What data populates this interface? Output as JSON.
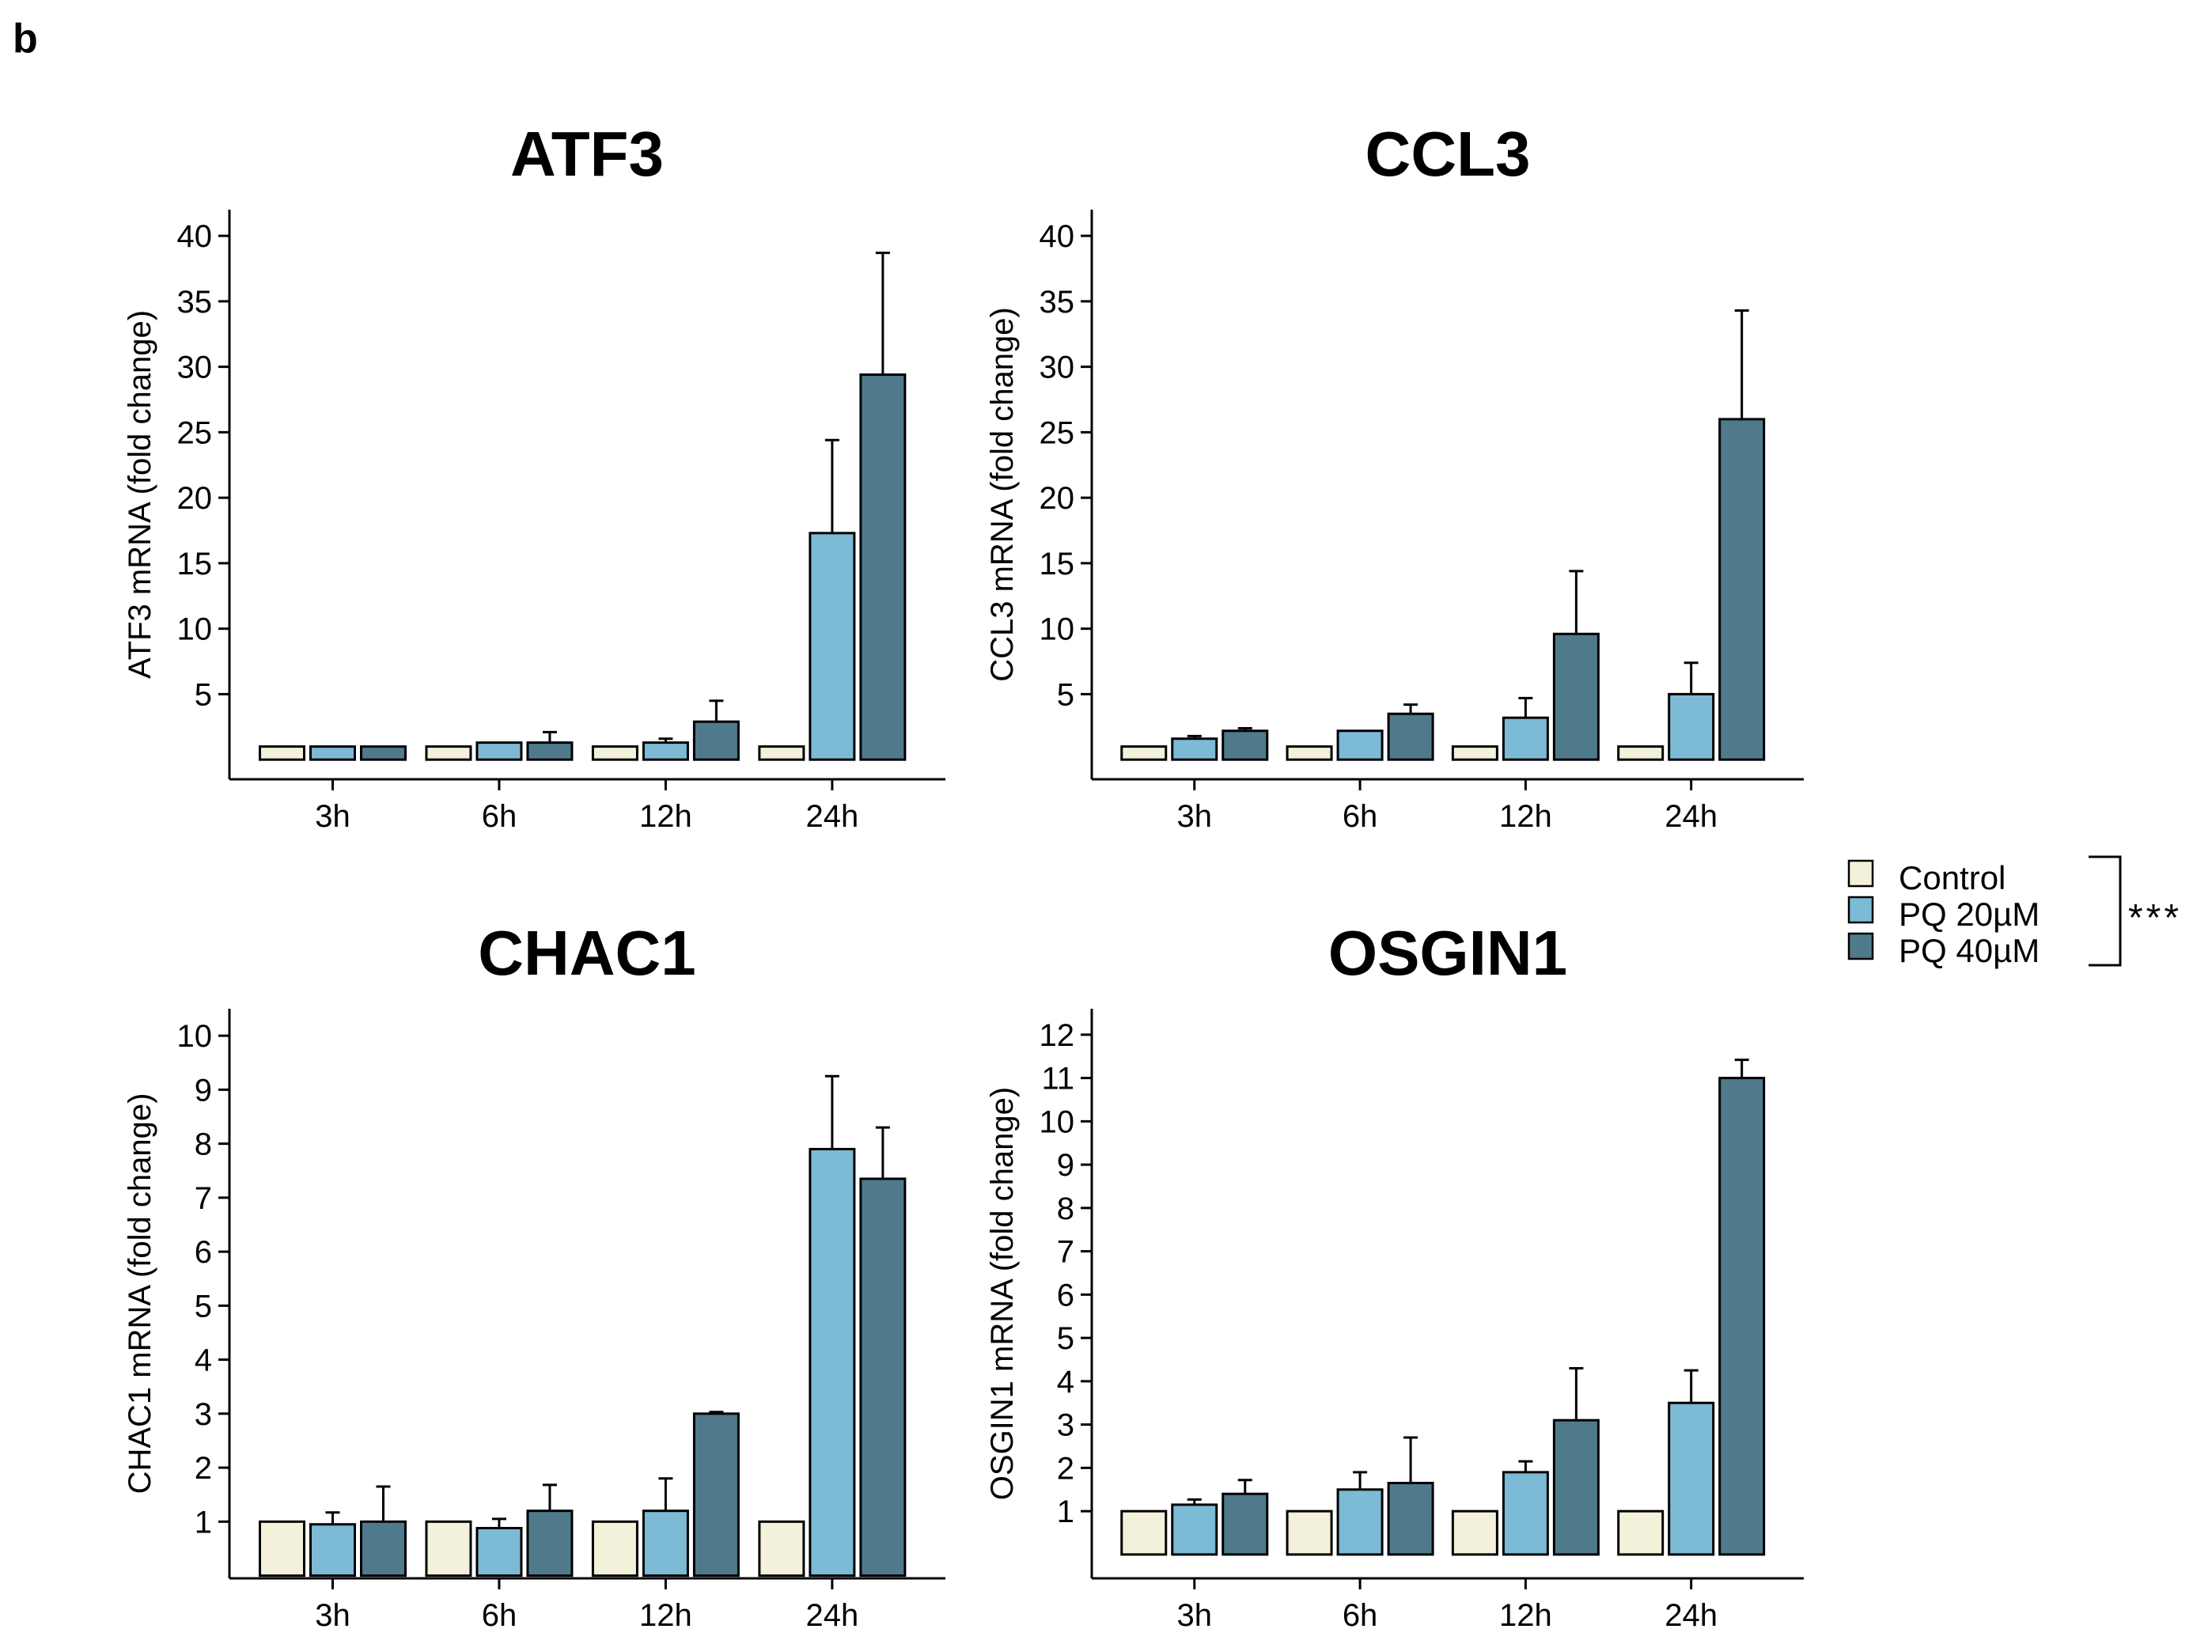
{
  "panel_label": "b",
  "colors": {
    "control": "#f4f1da",
    "pq20": "#7cbad5",
    "pq40": "#4f7a8c",
    "axis": "#000000"
  },
  "legend": {
    "items": [
      {
        "key": "control",
        "label": "Control"
      },
      {
        "key": "pq20",
        "label": "PQ 20µM"
      },
      {
        "key": "pq40",
        "label": "PQ 40µM"
      }
    ],
    "significance": "***"
  },
  "chart_data": [
    {
      "type": "bar",
      "title": "ATF3",
      "ylabel": "ATF3 mRNA (fold change)",
      "xlabel": "",
      "categories": [
        "3h",
        "6h",
        "12h",
        "24h"
      ],
      "ylim": [
        -1.5,
        42
      ],
      "yticks": [
        5,
        10,
        15,
        20,
        25,
        30,
        35,
        40
      ],
      "series": [
        {
          "name": "Control",
          "values": [
            1,
            1,
            1,
            1
          ],
          "errors": [
            0,
            0,
            0,
            0
          ],
          "color_key": "control"
        },
        {
          "name": "PQ 20µM",
          "values": [
            1,
            1.3,
            1.3,
            17.3
          ],
          "errors": [
            0,
            0,
            0.3,
            7.1
          ],
          "color_key": "pq20"
        },
        {
          "name": "PQ 40µM",
          "values": [
            1,
            1.3,
            2.9,
            29.4
          ],
          "errors": [
            0,
            0.8,
            1.6,
            9.3
          ],
          "color_key": "pq40"
        }
      ]
    },
    {
      "type": "bar",
      "title": "CCL3",
      "ylabel": "CCL3 mRNA (fold change)",
      "xlabel": "",
      "categories": [
        "3h",
        "6h",
        "12h",
        "24h"
      ],
      "ylim": [
        -1.5,
        42
      ],
      "yticks": [
        5,
        10,
        15,
        20,
        25,
        30,
        35,
        40
      ],
      "series": [
        {
          "name": "Control",
          "values": [
            1,
            1,
            1,
            1
          ],
          "errors": [
            0,
            0,
            0,
            0
          ],
          "color_key": "control"
        },
        {
          "name": "PQ 20µM",
          "values": [
            1.6,
            2.2,
            3.2,
            5
          ],
          "errors": [
            0.2,
            0,
            1.5,
            2.4
          ],
          "color_key": "pq20"
        },
        {
          "name": "PQ 40µM",
          "values": [
            2.2,
            3.5,
            9.6,
            26
          ],
          "errors": [
            0.2,
            0.7,
            4.8,
            8.3
          ],
          "color_key": "pq40"
        }
      ]
    },
    {
      "type": "bar",
      "title": "CHAC1",
      "ylabel": "CHAC1 mRNA (fold change)",
      "xlabel": "",
      "categories": [
        "3h",
        "6h",
        "12h",
        "24h"
      ],
      "ylim": [
        -0.05,
        10.5
      ],
      "yticks": [
        1,
        2,
        3,
        4,
        5,
        6,
        7,
        8,
        9,
        10
      ],
      "series": [
        {
          "name": "Control",
          "values": [
            1,
            1,
            1,
            1
          ],
          "errors": [
            0,
            0,
            0,
            0
          ],
          "color_key": "control"
        },
        {
          "name": "PQ 20µM",
          "values": [
            0.95,
            0.88,
            1.2,
            7.9
          ],
          "errors": [
            0.22,
            0.17,
            0.6,
            1.35
          ],
          "color_key": "pq20"
        },
        {
          "name": "PQ 40µM",
          "values": [
            1,
            1.2,
            3,
            7.35
          ],
          "errors": [
            0.65,
            0.48,
            0.03,
            0.95
          ],
          "color_key": "pq40"
        }
      ]
    },
    {
      "type": "bar",
      "title": "OSGIN1",
      "ylabel": "OSGIN1 mRNA (fold change)",
      "xlabel": "",
      "categories": [
        "3h",
        "6h",
        "12h",
        "24h"
      ],
      "ylim": [
        -0.55,
        12.6
      ],
      "yticks": [
        1,
        2,
        3,
        4,
        5,
        6,
        7,
        8,
        9,
        10,
        11,
        12
      ],
      "series": [
        {
          "name": "Control",
          "values": [
            1,
            1,
            1,
            1
          ],
          "errors": [
            0,
            0,
            0,
            0
          ],
          "color_key": "control"
        },
        {
          "name": "PQ 20µM",
          "values": [
            1.15,
            1.5,
            1.9,
            3.5
          ],
          "errors": [
            0.12,
            0.4,
            0.25,
            0.75
          ],
          "color_key": "pq20"
        },
        {
          "name": "PQ 40µM",
          "values": [
            1.4,
            1.65,
            3.1,
            11
          ],
          "errors": [
            0.32,
            1.05,
            1.2,
            0.42
          ],
          "color_key": "pq40"
        }
      ]
    }
  ]
}
